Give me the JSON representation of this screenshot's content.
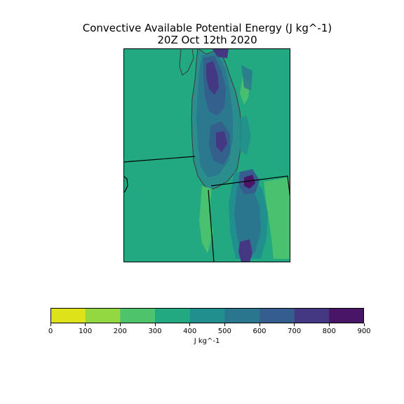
{
  "title_line1": "Convective Available Potential Energy (J kg^-1)",
  "title_line2": "20Z Oct 12th 2020",
  "colorbar": {
    "unit_label": "J kg^-1",
    "ticks": [
      "0",
      "100",
      "200",
      "300",
      "400",
      "500",
      "600",
      "700",
      "800",
      "900"
    ],
    "colors": [
      "#dde318",
      "#93d741",
      "#4ec36b",
      "#23a982",
      "#218f8d",
      "#2a768e",
      "#355d8d",
      "#453882",
      "#481567"
    ]
  },
  "map": {
    "background_color": "#23a982",
    "layers": [
      "land-field",
      "lake-michigan",
      "state-borders",
      "cape-contours"
    ]
  }
}
